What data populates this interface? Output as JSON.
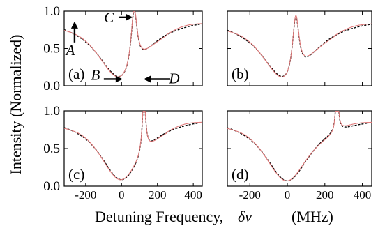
{
  "figure": {
    "ylabel": "Intensity (Normalized)",
    "xlabel_text": "Detuning Frequency,",
    "xlabel_symbol": "δν",
    "xlabel_unit": "(MHz)"
  },
  "colors": {
    "theory": "#000000",
    "experiment": "#e07a7a"
  },
  "chart_data": [
    {
      "type": "line",
      "panel_label": "(a)",
      "xlim": [
        -320,
        450
      ],
      "ylim": [
        0,
        1.0
      ],
      "xticks": [
        -200,
        0,
        200,
        400
      ],
      "show_xticklabels": false,
      "yticks": [
        0.0,
        0.5,
        1.0
      ],
      "yticklabels": [
        "0.0",
        "0.5",
        "1.0"
      ],
      "show_yticklabels": true,
      "model": {
        "baseline": 0.93,
        "width": 165,
        "pump_center": 70,
        "pump_height": 0.82,
        "pump_width": 21,
        "floor": 0.07
      },
      "annotations": [
        {
          "text": "A",
          "x": -262,
          "y": 0.88
        },
        {
          "text": "B",
          "x": 10,
          "y": 0.08
        },
        {
          "text": "C",
          "x": 70,
          "y": 0.89
        },
        {
          "text": "D",
          "x": 100,
          "y": 0.07
        }
      ],
      "series": [
        {
          "style": "dashed",
          "color": "#000000"
        },
        {
          "style": "solid",
          "color": "#e07a7a"
        }
      ]
    },
    {
      "type": "line",
      "panel_label": "(b)",
      "xlim": [
        -320,
        450
      ],
      "ylim": [
        0,
        1.0
      ],
      "xticks": [
        -200,
        0,
        200,
        400
      ],
      "show_xticklabels": false,
      "yticks": [
        0.0,
        0.5,
        1.0
      ],
      "show_yticklabels": false,
      "model": {
        "baseline": 0.93,
        "width": 165,
        "pump_center": 45,
        "pump_height": 0.84,
        "pump_width": 22,
        "floor": 0.03
      },
      "annotations": [],
      "series": [
        {
          "style": "dashed",
          "color": "#000000"
        },
        {
          "style": "solid",
          "color": "#e07a7a"
        }
      ]
    },
    {
      "type": "line",
      "panel_label": "(c)",
      "xlim": [
        -320,
        450
      ],
      "ylim": [
        0,
        1.0
      ],
      "xticks": [
        -200,
        0,
        200,
        400
      ],
      "show_xticklabels": true,
      "xticklabels": [
        "-200",
        "0",
        "200",
        "400"
      ],
      "yticks": [
        0.0,
        0.5,
        1.0
      ],
      "yticklabels": [
        "0.0",
        "0.5",
        "1.0"
      ],
      "show_yticklabels": true,
      "model": {
        "baseline": 0.93,
        "width": 150,
        "pump_center": 125,
        "pump_height": 0.78,
        "pump_width": 11,
        "floor": 0.08
      },
      "annotations": [],
      "series": [
        {
          "style": "dashed",
          "color": "#000000"
        },
        {
          "style": "solid",
          "color": "#e07a7a"
        }
      ]
    },
    {
      "type": "line",
      "panel_label": "(d)",
      "xlim": [
        -320,
        450
      ],
      "ylim": [
        0,
        1.0
      ],
      "xticks": [
        -200,
        0,
        200,
        400
      ],
      "show_xticklabels": true,
      "xticklabels": [
        "-200",
        "0",
        "200",
        "400"
      ],
      "yticks": [
        0.0,
        0.5,
        1.0
      ],
      "show_yticklabels": false,
      "model": {
        "baseline": 0.93,
        "width": 150,
        "pump_center": 265,
        "pump_height": 0.8,
        "pump_width": 7,
        "floor": 0.07
      },
      "annotations": [],
      "series": [
        {
          "style": "dashed",
          "color": "#000000"
        },
        {
          "style": "solid",
          "color": "#e07a7a"
        }
      ]
    }
  ]
}
